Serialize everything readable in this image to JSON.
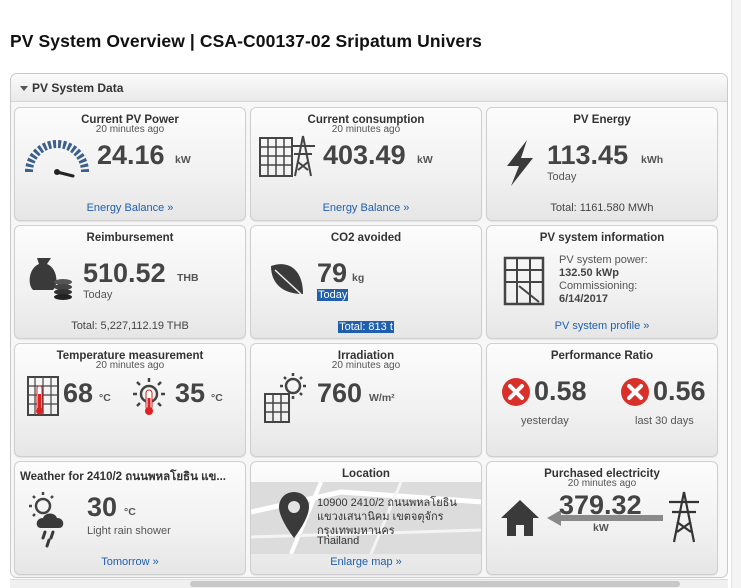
{
  "page": {
    "title": "PV System Overview | CSA-C00137-02 Sripatum Univers"
  },
  "panel": {
    "header": "PV System Data"
  },
  "tiles": {
    "current_pv_power": {
      "title": "Current PV Power",
      "subtitle": "20 minutes ago",
      "value": "24.16",
      "unit": "kW",
      "link": "Energy Balance »"
    },
    "current_consumption": {
      "title": "Current consumption",
      "subtitle": "20 minutes ago",
      "value": "403.49",
      "unit": "kW",
      "link": "Energy Balance »"
    },
    "pv_energy": {
      "title": "PV Energy",
      "value": "113.45",
      "unit": "kWh",
      "period": "Today",
      "footer": "Total: 1161.580 MWh"
    },
    "reimbursement": {
      "title": "Reimbursement",
      "value": "510.52",
      "unit": "THB",
      "period": "Today",
      "footer": "Total: 5,227,112.19 THB"
    },
    "co2_avoided": {
      "title": "CO2 avoided",
      "value": "79",
      "unit": "kg",
      "period": "Today",
      "footer": "Total: 813 t"
    },
    "pv_system_info": {
      "title": "PV system information",
      "power_label": "PV system power:",
      "power_value": "132.50 kWp",
      "commissioning_label": "Commissioning:",
      "commissioning_value": "6/14/2017",
      "link": "PV system profile »"
    },
    "temperature": {
      "title": "Temperature measurement",
      "subtitle": "20 minutes ago",
      "module_value": "68",
      "module_unit": "°C",
      "ambient_value": "35",
      "ambient_unit": "°C"
    },
    "irradiation": {
      "title": "Irradiation",
      "subtitle": "20 minutes ago",
      "value": "760",
      "unit": "W/m²"
    },
    "performance_ratio": {
      "title": "Performance Ratio",
      "yesterday_value": "0.58",
      "yesterday_label": "yesterday",
      "last30_value": "0.56",
      "last30_label": "last 30 days"
    },
    "weather": {
      "title": "Weather for 2410/2 ถนนพหลโยธิน แข...",
      "value": "30",
      "unit": "°C",
      "condition": "Light rain shower",
      "link": "Tomorrow »"
    },
    "location": {
      "title": "Location",
      "address_line1": "10900 2410/2 ถนนพหลโยธิน",
      "address_line2": "แขวงเสนานิคม เขตจตุจักร",
      "address_line3": "กรุงเทพมหานคร",
      "country": "Thailand",
      "link": "Enlarge map »"
    },
    "purchased_electricity": {
      "title": "Purchased electricity",
      "subtitle": "20 minutes ago",
      "value": "379.32",
      "unit": "kW"
    }
  },
  "colors": {
    "link": "#1f5fae",
    "error_red": "#d9302c",
    "selection": "#1f5fae"
  },
  "icons": [
    "gauge-icon",
    "solar-panel-icon",
    "power-pylon-icon",
    "lightning-icon",
    "money-bag-icon",
    "leaf-icon",
    "solar-panel-certificate-icon",
    "thermometer-panel-icon",
    "sun-thermometer-icon",
    "sun-panel-icon",
    "error-x-icon",
    "weather-sun-rain-icon",
    "map-pin-icon",
    "house-icon",
    "arrow-left-icon"
  ]
}
